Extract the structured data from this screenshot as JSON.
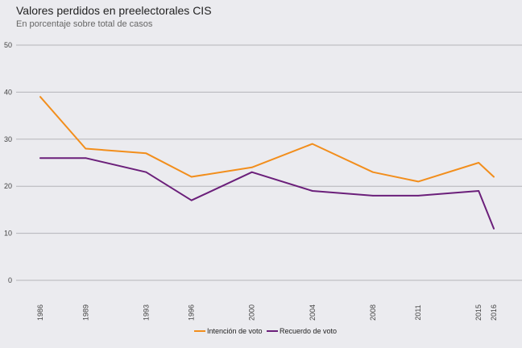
{
  "chart_data": {
    "type": "line",
    "title": "Valores perdidos en preelectorales CIS",
    "subtitle": "En porcentaje sobre total de casos",
    "xlabel": "",
    "ylabel": "",
    "ylim": [
      0,
      50
    ],
    "yticks": [
      "0",
      "10",
      "20",
      "30",
      "40",
      "50"
    ],
    "xlim": [
      1986,
      2016
    ],
    "x": [
      1986,
      1989,
      1993,
      1996,
      2000,
      2004,
      2008,
      2011,
      2015,
      2016
    ],
    "xtick_labels": [
      "1986",
      "1989",
      "1993",
      "1996",
      "2000",
      "2004",
      "2008",
      "2011",
      "2015",
      "2016"
    ],
    "grid": true,
    "legend_position": "bottom",
    "series": [
      {
        "name": "Intención de voto",
        "color": "#F28E1C",
        "values": [
          39,
          28,
          27,
          22,
          24,
          29,
          23,
          21,
          25,
          22
        ]
      },
      {
        "name": "Recuerdo de voto",
        "color": "#6B1F7A",
        "values": [
          26,
          26,
          23,
          17,
          23,
          19,
          18,
          18,
          19,
          11
        ]
      }
    ]
  }
}
